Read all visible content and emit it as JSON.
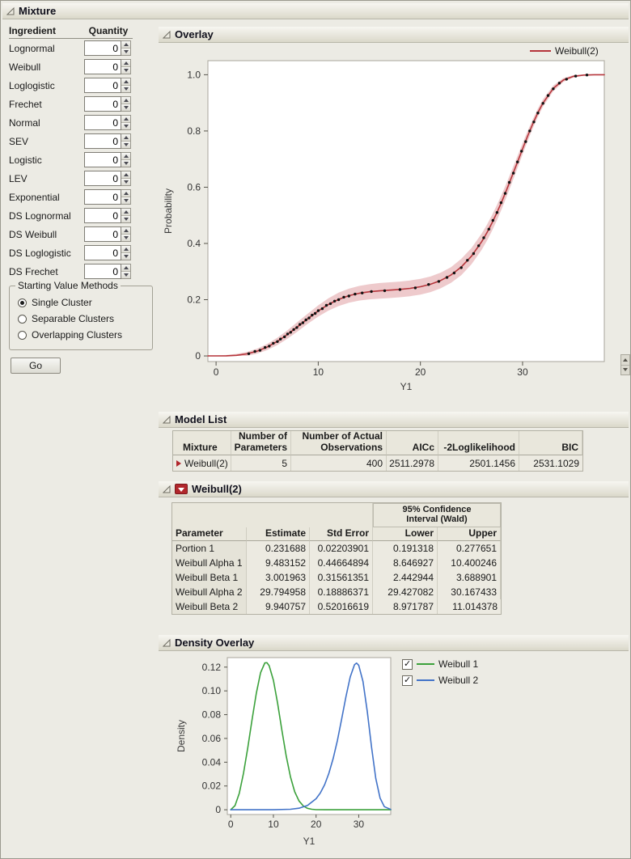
{
  "window_title": "Mixture",
  "sections": {
    "overlay": "Overlay",
    "model_list": "Model List",
    "weibull2": "Weibull(2)",
    "density_overlay": "Density Overlay"
  },
  "ingredient_panel": {
    "headers": [
      "Ingredient",
      "Quantity"
    ],
    "rows": [
      {
        "label": "Lognormal",
        "value": "0"
      },
      {
        "label": "Weibull",
        "value": "0"
      },
      {
        "label": "Loglogistic",
        "value": "0"
      },
      {
        "label": "Frechet",
        "value": "0"
      },
      {
        "label": "Normal",
        "value": "0"
      },
      {
        "label": "SEV",
        "value": "0"
      },
      {
        "label": "Logistic",
        "value": "0"
      },
      {
        "label": "LEV",
        "value": "0"
      },
      {
        "label": "Exponential",
        "value": "0"
      },
      {
        "label": "DS Lognormal",
        "value": "0"
      },
      {
        "label": "DS Weibull",
        "value": "0"
      },
      {
        "label": "DS Loglogistic",
        "value": "0"
      },
      {
        "label": "DS Frechet",
        "value": "0"
      }
    ]
  },
  "starting_value_methods": {
    "title": "Starting Value Methods",
    "options": [
      {
        "label": "Single Cluster",
        "selected": true
      },
      {
        "label": "Separable Clusters",
        "selected": false
      },
      {
        "label": "Overlapping Clusters",
        "selected": false
      }
    ]
  },
  "go_button_label": "Go",
  "model_list_table": {
    "headers": [
      "Mixture",
      "Number of\nParameters",
      "Number of Actual\nObservations",
      "AICc",
      "-2Loglikelihood",
      "BIC"
    ],
    "rows": [
      [
        "Weibull(2)",
        "5",
        "400",
        "2511.2978",
        "2501.1456",
        "2531.1029"
      ]
    ]
  },
  "weibull_table": {
    "ci_header": "95% Confidence\nInterval (Wald)",
    "headers": [
      "Parameter",
      "Estimate",
      "Std Error",
      "Lower",
      "Upper"
    ],
    "rows": [
      [
        "Portion 1",
        "0.231688",
        "0.02203901",
        "0.191318",
        "0.277651"
      ],
      [
        "Weibull Alpha 1",
        "9.483152",
        "0.44664894",
        "8.646927",
        "10.400246"
      ],
      [
        "Weibull Beta 1",
        "3.001963",
        "0.31561351",
        "2.442944",
        "3.688901"
      ],
      [
        "Weibull Alpha 2",
        "29.794958",
        "0.18886371",
        "29.427082",
        "30.167433"
      ],
      [
        "Weibull Beta 2",
        "9.940757",
        "0.52016619",
        "8.971787",
        "11.014378"
      ]
    ]
  },
  "chart_data": [
    {
      "type": "line",
      "title": "Overlay",
      "xlabel": "Y1",
      "ylabel": "Probability",
      "xlim": [
        -0.8,
        38
      ],
      "ylim": [
        -0.02,
        1.05
      ],
      "xticks": [
        0,
        10,
        20,
        30
      ],
      "xtick_labels": [
        "0",
        "10",
        "20",
        "30"
      ],
      "yticks": [
        0,
        0.2,
        0.4,
        0.6,
        0.8,
        1.0
      ],
      "ytick_labels": [
        "0",
        "0.2",
        "0.4",
        "0.6",
        "0.8",
        "1.0"
      ],
      "grid": false,
      "legend_position": "top-right",
      "legend": [
        {
          "label": "Weibull(2)",
          "color": "#b5353b"
        }
      ],
      "series": [
        {
          "name": "Weibull(2) mixture CDF",
          "color": "#b5353b",
          "x": [
            -0.8,
            0,
            1,
            2,
            3,
            4,
            5,
            6,
            7,
            8,
            9,
            10,
            11,
            12,
            13,
            14,
            15,
            16,
            17,
            18,
            19,
            20,
            21,
            22,
            23,
            24,
            25,
            26,
            26.5,
            27,
            27.5,
            28,
            28.5,
            29,
            29.5,
            30,
            30.5,
            31,
            31.5,
            32,
            33,
            34,
            35,
            36,
            37,
            38
          ],
          "y": [
            0,
            0,
            0.0003,
            0.0022,
            0.0072,
            0.0168,
            0.0316,
            0.0518,
            0.0767,
            0.1046,
            0.1331,
            0.16,
            0.1831,
            0.2012,
            0.2143,
            0.2228,
            0.2281,
            0.2314,
            0.2339,
            0.2366,
            0.2404,
            0.2462,
            0.255,
            0.2685,
            0.2881,
            0.3162,
            0.3549,
            0.4065,
            0.4375,
            0.4723,
            0.5105,
            0.5519,
            0.5961,
            0.6423,
            0.6895,
            0.7366,
            0.7824,
            0.8256,
            0.865,
            0.8994,
            0.9514,
            0.9813,
            0.9946,
            0.9989,
            0.9999,
            1.0
          ]
        }
      ],
      "band": {
        "name": "95% confidence band",
        "color": "rgba(198,78,85,0.30)",
        "delta": [
          0.002,
          0.002,
          0.003,
          0.005,
          0.007,
          0.009,
          0.011,
          0.013,
          0.015,
          0.017,
          0.018,
          0.02,
          0.022,
          0.024,
          0.025,
          0.026,
          0.027,
          0.028,
          0.028,
          0.028,
          0.028,
          0.028,
          0.028,
          0.028,
          0.028,
          0.029,
          0.029,
          0.029,
          0.0285,
          0.028,
          0.027,
          0.026,
          0.0245,
          0.023,
          0.0215,
          0.02,
          0.018,
          0.016,
          0.0145,
          0.013,
          0.01,
          0.007,
          0.004,
          0.002,
          0.001,
          0.001
        ]
      },
      "points": {
        "name": "empirical CDF observations",
        "color": "#111111",
        "xy": [
          [
            3.2,
            0.008
          ],
          [
            3.8,
            0.016
          ],
          [
            4.3,
            0.02
          ],
          [
            4.8,
            0.03
          ],
          [
            5.2,
            0.035
          ],
          [
            5.6,
            0.045
          ],
          [
            6.0,
            0.051
          ],
          [
            6.3,
            0.06
          ],
          [
            6.7,
            0.068
          ],
          [
            7.0,
            0.078
          ],
          [
            7.3,
            0.084
          ],
          [
            7.6,
            0.094
          ],
          [
            7.9,
            0.101
          ],
          [
            8.2,
            0.112
          ],
          [
            8.5,
            0.118
          ],
          [
            8.8,
            0.128
          ],
          [
            9.1,
            0.135
          ],
          [
            9.4,
            0.145
          ],
          [
            9.7,
            0.151
          ],
          [
            10.0,
            0.161
          ],
          [
            10.4,
            0.168
          ],
          [
            10.8,
            0.18
          ],
          [
            11.2,
            0.186
          ],
          [
            11.6,
            0.195
          ],
          [
            12.0,
            0.2
          ],
          [
            12.5,
            0.209
          ],
          [
            13.0,
            0.213
          ],
          [
            13.6,
            0.22
          ],
          [
            14.3,
            0.224
          ],
          [
            15.2,
            0.229
          ],
          [
            16.5,
            0.232
          ],
          [
            18.0,
            0.236
          ],
          [
            19.5,
            0.242
          ],
          [
            20.8,
            0.254
          ],
          [
            21.8,
            0.265
          ],
          [
            22.6,
            0.279
          ],
          [
            23.3,
            0.295
          ],
          [
            24.0,
            0.314
          ],
          [
            24.6,
            0.34
          ],
          [
            25.2,
            0.364
          ],
          [
            25.7,
            0.392
          ],
          [
            26.2,
            0.42
          ],
          [
            26.7,
            0.451
          ],
          [
            27.1,
            0.482
          ],
          [
            27.5,
            0.51
          ],
          [
            27.9,
            0.545
          ],
          [
            28.3,
            0.578
          ],
          [
            28.7,
            0.617
          ],
          [
            29.1,
            0.65
          ],
          [
            29.5,
            0.69
          ],
          [
            29.9,
            0.728
          ],
          [
            30.3,
            0.762
          ],
          [
            30.7,
            0.8
          ],
          [
            31.1,
            0.832
          ],
          [
            31.5,
            0.864
          ],
          [
            32.0,
            0.898
          ],
          [
            32.5,
            0.926
          ],
          [
            33.0,
            0.95
          ],
          [
            33.6,
            0.97
          ],
          [
            34.3,
            0.984
          ],
          [
            35.2,
            0.995
          ],
          [
            36.3,
            0.999
          ]
        ]
      }
    },
    {
      "type": "line",
      "title": "Density Overlay",
      "xlabel": "Y1",
      "ylabel": "Density",
      "xlim": [
        -0.8,
        37.5
      ],
      "ylim": [
        -0.004,
        0.128
      ],
      "xticks": [
        0,
        10,
        20,
        30
      ],
      "xtick_labels": [
        "0",
        "10",
        "20",
        "30"
      ],
      "yticks": [
        0,
        0.02,
        0.04,
        0.06,
        0.08,
        0.1,
        0.12
      ],
      "ytick_labels": [
        "0",
        "0.02",
        "0.04",
        "0.06",
        "0.08",
        "0.10",
        "0.12"
      ],
      "grid": false,
      "legend_position": "right",
      "legend": [
        {
          "label": "Weibull 1",
          "color": "#3ba13b",
          "checked": true
        },
        {
          "label": "Weibull 2",
          "color": "#4273c8",
          "checked": true
        }
      ],
      "series": [
        {
          "name": "Weibull 1",
          "color": "#3ba13b",
          "x": [
            0,
            1,
            2,
            3,
            4,
            5,
            6,
            7,
            8,
            8.5,
            9,
            10,
            11,
            12,
            13,
            14,
            15,
            16,
            17,
            18,
            19,
            20,
            22,
            25,
            30,
            37.5
          ],
          "y": [
            0,
            0.0035,
            0.0139,
            0.0307,
            0.0522,
            0.0759,
            0.0982,
            0.1153,
            0.1236,
            0.1237,
            0.1212,
            0.1089,
            0.0894,
            0.0667,
            0.0452,
            0.0276,
            0.0151,
            0.0074,
            0.0032,
            0.0012,
            0.0004,
            0.0001,
            0,
            0,
            0,
            0
          ]
        },
        {
          "name": "Weibull 2",
          "color": "#4273c8",
          "x": [
            0,
            5,
            10,
            14,
            16,
            18,
            20,
            21,
            22,
            23,
            24,
            25,
            26,
            27,
            28,
            29,
            29.5,
            30,
            31,
            32,
            33,
            34,
            35,
            36,
            37.5
          ],
          "y": [
            0,
            0,
            0,
            0.0004,
            0.0013,
            0.0037,
            0.0093,
            0.0142,
            0.0211,
            0.0306,
            0.043,
            0.0583,
            0.0762,
            0.095,
            0.1117,
            0.122,
            0.1234,
            0.1216,
            0.1079,
            0.0827,
            0.0526,
            0.0264,
            0.0099,
            0.0026,
            0.0003
          ]
        }
      ]
    }
  ]
}
